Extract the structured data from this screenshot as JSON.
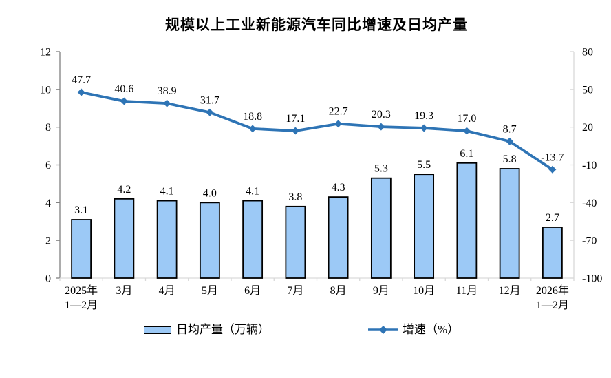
{
  "chart_data": {
    "type": "bar+line",
    "title": "规模以上工业新能源汽车同比增速及日均产量",
    "categories": [
      "2025年\n1—2月",
      "3月",
      "4月",
      "5月",
      "6月",
      "7月",
      "8月",
      "9月",
      "10月",
      "11月",
      "12月",
      "2026年\n1—2月"
    ],
    "series": [
      {
        "name": "日均产量（万辆）",
        "kind": "bar",
        "axis": "left",
        "values": [
          3.1,
          4.2,
          4.1,
          4.0,
          4.1,
          3.8,
          4.3,
          5.3,
          5.5,
          6.1,
          5.8,
          2.7
        ],
        "color": "#9CC9F6",
        "border_color": "#000000"
      },
      {
        "name": "增速（%）",
        "kind": "line",
        "axis": "right",
        "values": [
          47.7,
          40.6,
          38.9,
          31.7,
          18.8,
          17.1,
          22.7,
          20.3,
          19.3,
          17.0,
          8.7,
          -13.7
        ],
        "color": "#2E74B5",
        "marker": "diamond"
      }
    ],
    "axis_left": {
      "min": 0,
      "max": 12,
      "ticks": [
        0,
        2,
        4,
        6,
        8,
        10,
        12
      ]
    },
    "axis_right": {
      "min": -100,
      "max": 80,
      "ticks": [
        -100,
        -70,
        -40,
        -10,
        20,
        50,
        80
      ]
    },
    "grid": false,
    "legend_position": "bottom"
  }
}
